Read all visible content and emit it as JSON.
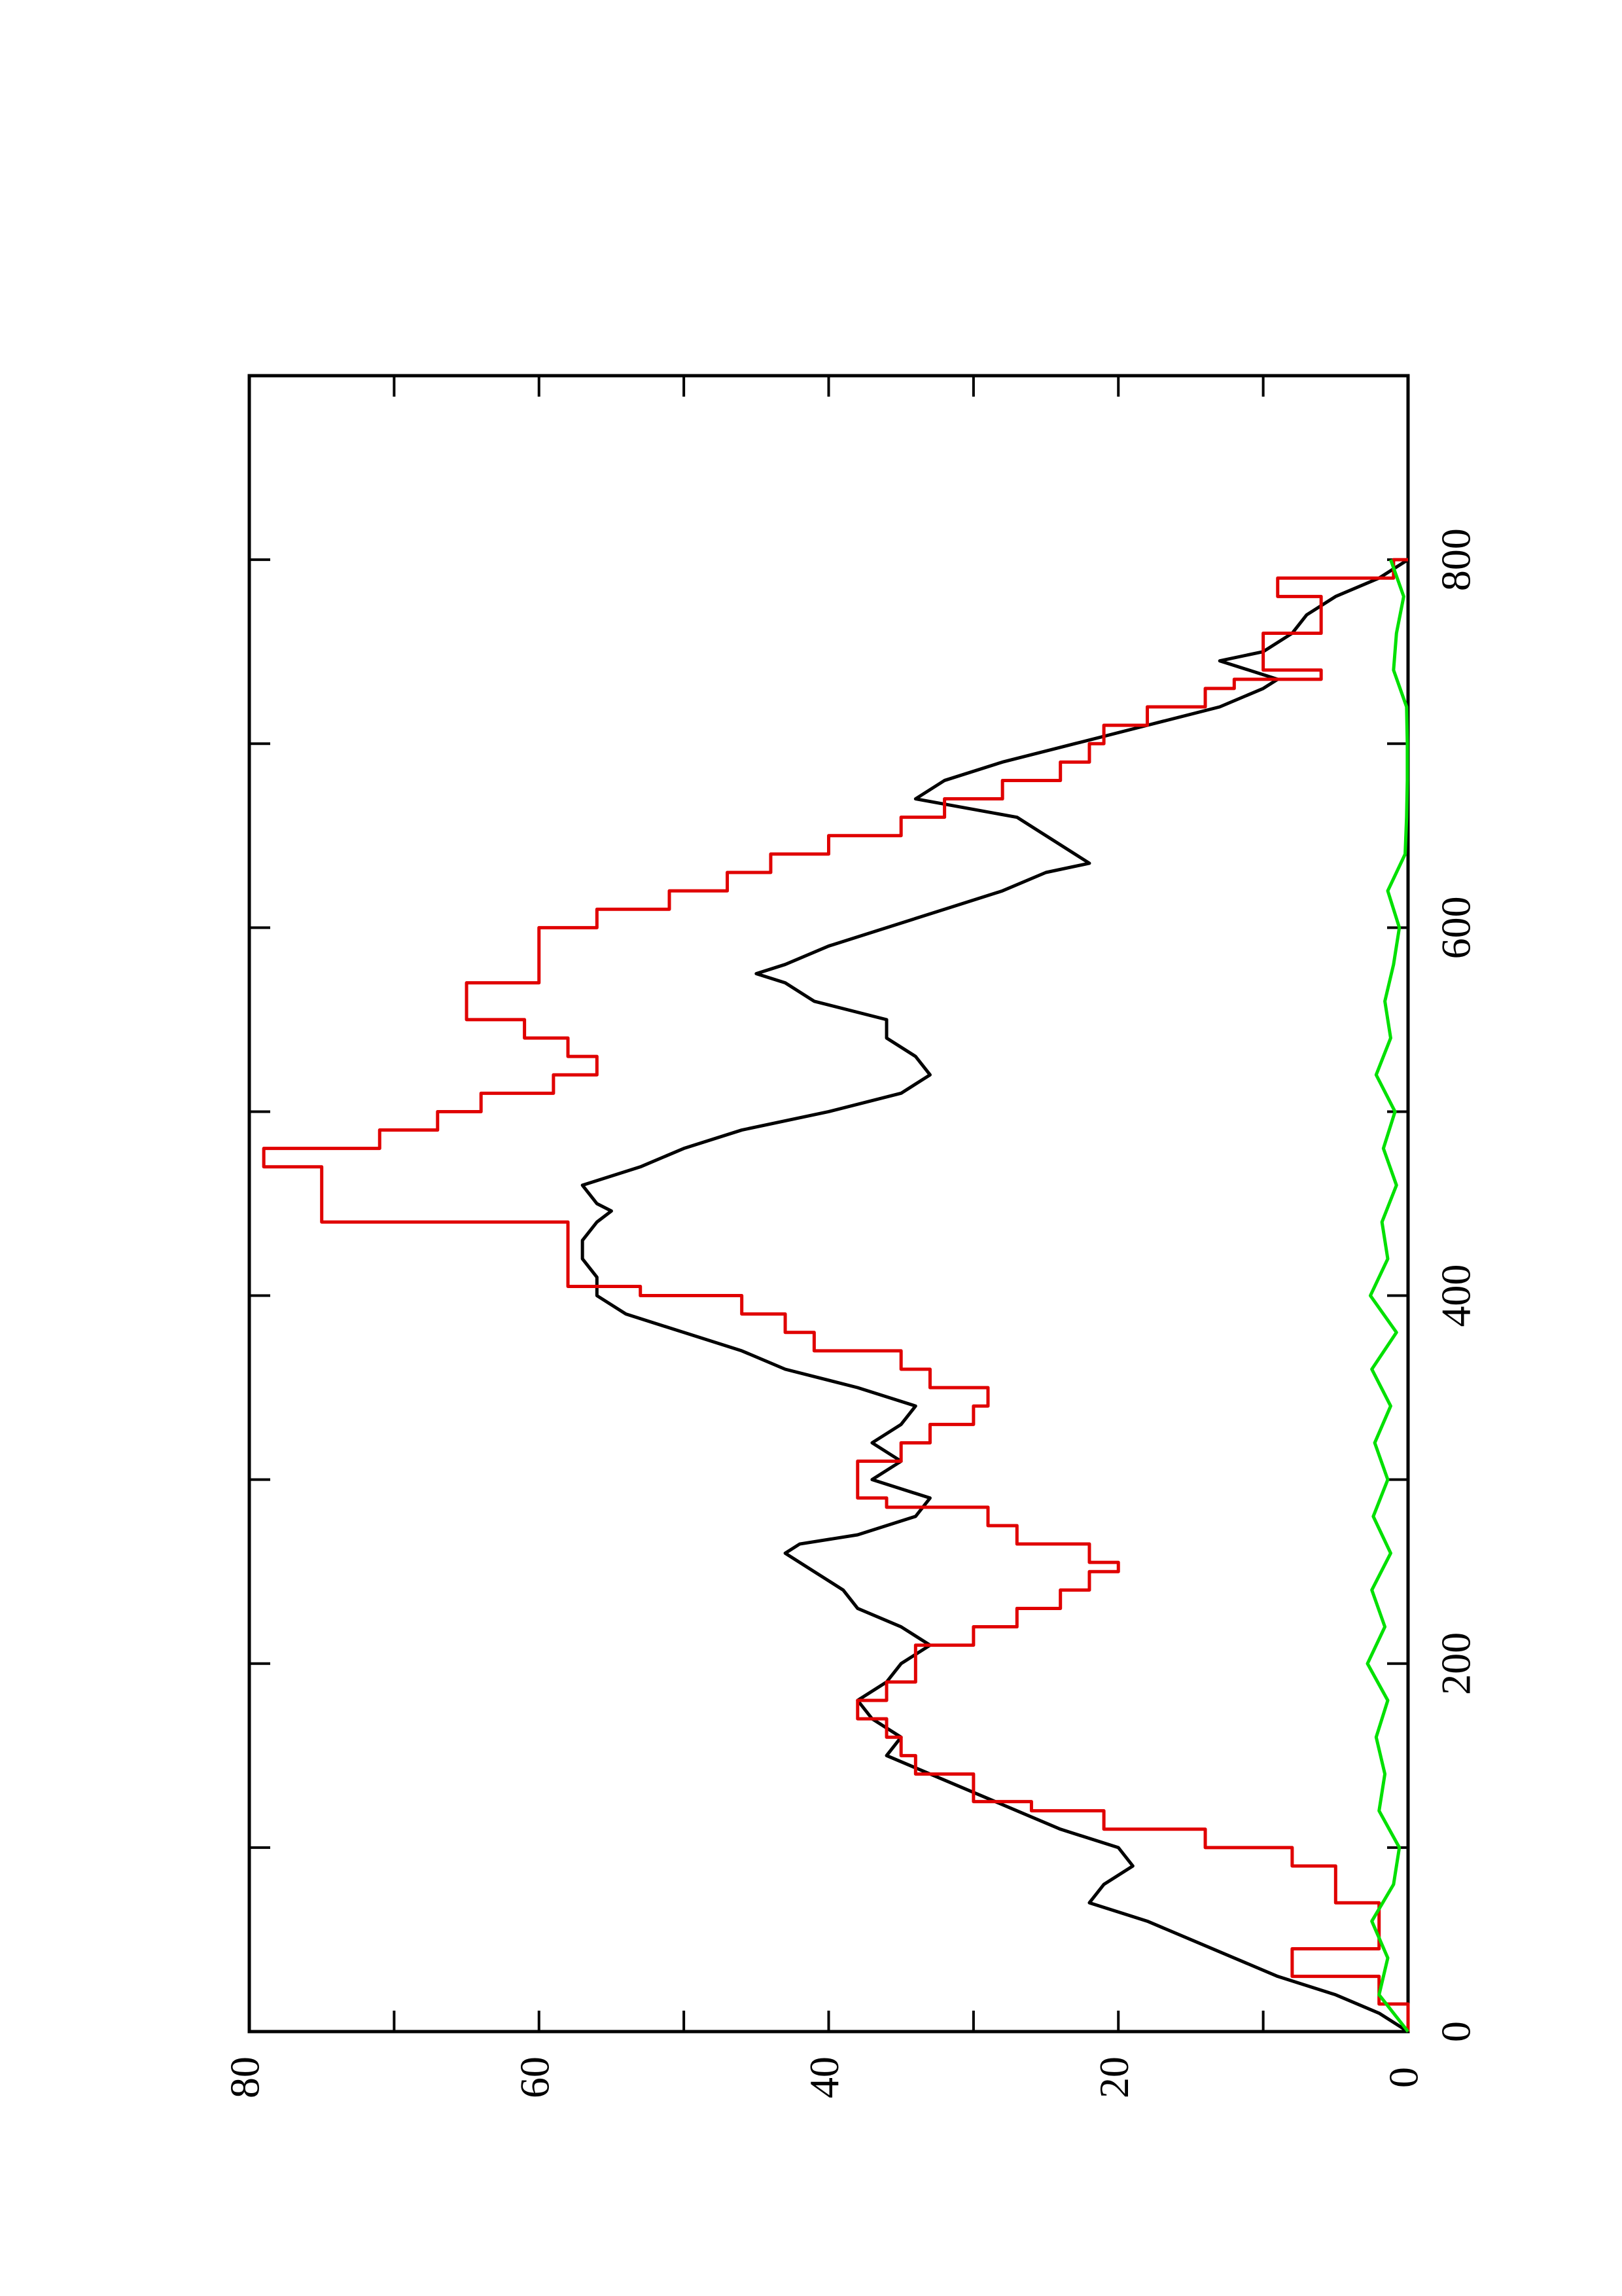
{
  "chart_data": {
    "type": "line",
    "orientation": "rotated 90 degrees counter-clockwise (x axis runs bottom to top, y axis runs right to left)",
    "xlim": [
      0,
      900
    ],
    "ylim": [
      0,
      80
    ],
    "x_ticks": [
      0,
      200,
      400,
      600,
      800
    ],
    "y_ticks": [
      0,
      20,
      40,
      60,
      80
    ],
    "x_tick_labels": [
      "0",
      "200",
      "400",
      "600",
      "800"
    ],
    "y_tick_labels": [
      "0",
      "20",
      "40",
      "60",
      "80"
    ],
    "grid": false,
    "legend": "none",
    "series": [
      {
        "color": "#000000",
        "style": "line",
        "points": [
          [
            0,
            0
          ],
          [
            10,
            2
          ],
          [
            20,
            5
          ],
          [
            30,
            9
          ],
          [
            40,
            12
          ],
          [
            50,
            15
          ],
          [
            60,
            18
          ],
          [
            70,
            22
          ],
          [
            80,
            21
          ],
          [
            90,
            19
          ],
          [
            100,
            20
          ],
          [
            110,
            24
          ],
          [
            120,
            27
          ],
          [
            130,
            30
          ],
          [
            140,
            33
          ],
          [
            150,
            36
          ],
          [
            160,
            35
          ],
          [
            170,
            37
          ],
          [
            180,
            38
          ],
          [
            190,
            36
          ],
          [
            200,
            35
          ],
          [
            210,
            33
          ],
          [
            220,
            35
          ],
          [
            230,
            38
          ],
          [
            240,
            39
          ],
          [
            250,
            41
          ],
          [
            260,
            43
          ],
          [
            265,
            42
          ],
          [
            270,
            38
          ],
          [
            280,
            34
          ],
          [
            290,
            33
          ],
          [
            300,
            37
          ],
          [
            310,
            35
          ],
          [
            320,
            37
          ],
          [
            330,
            35
          ],
          [
            340,
            34
          ],
          [
            350,
            38
          ],
          [
            360,
            43
          ],
          [
            370,
            46
          ],
          [
            380,
            50
          ],
          [
            390,
            54
          ],
          [
            400,
            56
          ],
          [
            410,
            56
          ],
          [
            420,
            57
          ],
          [
            430,
            57
          ],
          [
            440,
            56
          ],
          [
            446,
            55
          ],
          [
            450,
            56
          ],
          [
            460,
            57
          ],
          [
            470,
            53
          ],
          [
            480,
            50
          ],
          [
            490,
            46
          ],
          [
            500,
            40
          ],
          [
            510,
            35
          ],
          [
            520,
            33
          ],
          [
            530,
            34
          ],
          [
            540,
            36
          ],
          [
            550,
            36
          ],
          [
            560,
            41
          ],
          [
            570,
            43
          ],
          [
            575,
            45
          ],
          [
            580,
            43
          ],
          [
            590,
            40
          ],
          [
            600,
            36
          ],
          [
            610,
            32
          ],
          [
            620,
            28
          ],
          [
            630,
            25
          ],
          [
            635,
            22
          ],
          [
            640,
            23
          ],
          [
            650,
            25
          ],
          [
            660,
            27
          ],
          [
            670,
            34
          ],
          [
            680,
            32
          ],
          [
            690,
            28
          ],
          [
            700,
            23
          ],
          [
            710,
            18
          ],
          [
            720,
            13
          ],
          [
            730,
            10
          ],
          [
            735,
            9
          ],
          [
            740,
            11
          ],
          [
            745,
            13
          ],
          [
            750,
            10
          ],
          [
            760,
            8
          ],
          [
            770,
            7
          ],
          [
            780,
            5
          ],
          [
            790,
            2
          ],
          [
            795,
            1
          ],
          [
            800,
            0
          ]
        ]
      },
      {
        "color": "#e00000",
        "style": "step-line",
        "points": [
          [
            0,
            0
          ],
          [
            15,
            2
          ],
          [
            30,
            8
          ],
          [
            40,
            8
          ],
          [
            45,
            2
          ],
          [
            60,
            2
          ],
          [
            70,
            5
          ],
          [
            80,
            5
          ],
          [
            90,
            8
          ],
          [
            100,
            14
          ],
          [
            110,
            21
          ],
          [
            120,
            26
          ],
          [
            125,
            30
          ],
          [
            135,
            30
          ],
          [
            140,
            34
          ],
          [
            150,
            35
          ],
          [
            160,
            36
          ],
          [
            170,
            38
          ],
          [
            180,
            36
          ],
          [
            190,
            34
          ],
          [
            200,
            34
          ],
          [
            210,
            30
          ],
          [
            220,
            27
          ],
          [
            230,
            24
          ],
          [
            240,
            22
          ],
          [
            250,
            20
          ],
          [
            255,
            22
          ],
          [
            265,
            27
          ],
          [
            275,
            29
          ],
          [
            285,
            36
          ],
          [
            290,
            38
          ],
          [
            300,
            38
          ],
          [
            310,
            35
          ],
          [
            320,
            33
          ],
          [
            330,
            30
          ],
          [
            340,
            29
          ],
          [
            350,
            33
          ],
          [
            360,
            35
          ],
          [
            370,
            41
          ],
          [
            380,
            43
          ],
          [
            390,
            46
          ],
          [
            400,
            53
          ],
          [
            405,
            58
          ],
          [
            430,
            58
          ],
          [
            440,
            75
          ],
          [
            450,
            75
          ],
          [
            460,
            75
          ],
          [
            470,
            79
          ],
          [
            480,
            71
          ],
          [
            490,
            67
          ],
          [
            500,
            64
          ],
          [
            510,
            59
          ],
          [
            520,
            56
          ],
          [
            530,
            58
          ],
          [
            540,
            61
          ],
          [
            550,
            65
          ],
          [
            570,
            60
          ],
          [
            580,
            60
          ],
          [
            600,
            56
          ],
          [
            610,
            51
          ],
          [
            620,
            47
          ],
          [
            630,
            44
          ],
          [
            640,
            40
          ],
          [
            650,
            35
          ],
          [
            660,
            32
          ],
          [
            670,
            28
          ],
          [
            680,
            24
          ],
          [
            690,
            22
          ],
          [
            700,
            21
          ],
          [
            710,
            18
          ],
          [
            720,
            14
          ],
          [
            730,
            12
          ],
          [
            735,
            6
          ],
          [
            740,
            10
          ],
          [
            750,
            10
          ],
          [
            760,
            6
          ],
          [
            770,
            6
          ],
          [
            780,
            9
          ],
          [
            790,
            1
          ],
          [
            800,
            0
          ]
        ]
      },
      {
        "color": "#00e000",
        "style": "line",
        "points": [
          [
            0,
            0
          ],
          [
            20,
            2
          ],
          [
            40,
            1.4
          ],
          [
            60,
            2.5
          ],
          [
            80,
            1
          ],
          [
            100,
            0.6
          ],
          [
            120,
            2
          ],
          [
            140,
            1.6
          ],
          [
            160,
            2.2
          ],
          [
            180,
            1.4
          ],
          [
            200,
            2.8
          ],
          [
            220,
            1.6
          ],
          [
            240,
            2.5
          ],
          [
            260,
            1.2
          ],
          [
            280,
            2.4
          ],
          [
            300,
            1.4
          ],
          [
            320,
            2.3
          ],
          [
            340,
            1.2
          ],
          [
            360,
            2.5
          ],
          [
            380,
            0.8
          ],
          [
            400,
            2.6
          ],
          [
            420,
            1.4
          ],
          [
            440,
            1.8
          ],
          [
            460,
            0.8
          ],
          [
            480,
            1.7
          ],
          [
            500,
            0.9
          ],
          [
            520,
            2.2
          ],
          [
            540,
            1.2
          ],
          [
            560,
            1.6
          ],
          [
            580,
            1
          ],
          [
            600,
            0.6
          ],
          [
            620,
            1.4
          ],
          [
            640,
            0.2
          ],
          [
            660,
            0.1
          ],
          [
            680,
            0.05
          ],
          [
            700,
            0.05
          ],
          [
            720,
            0.1
          ],
          [
            740,
            1
          ],
          [
            760,
            0.8
          ],
          [
            780,
            0.3
          ],
          [
            800,
            1.2
          ]
        ]
      }
    ]
  }
}
